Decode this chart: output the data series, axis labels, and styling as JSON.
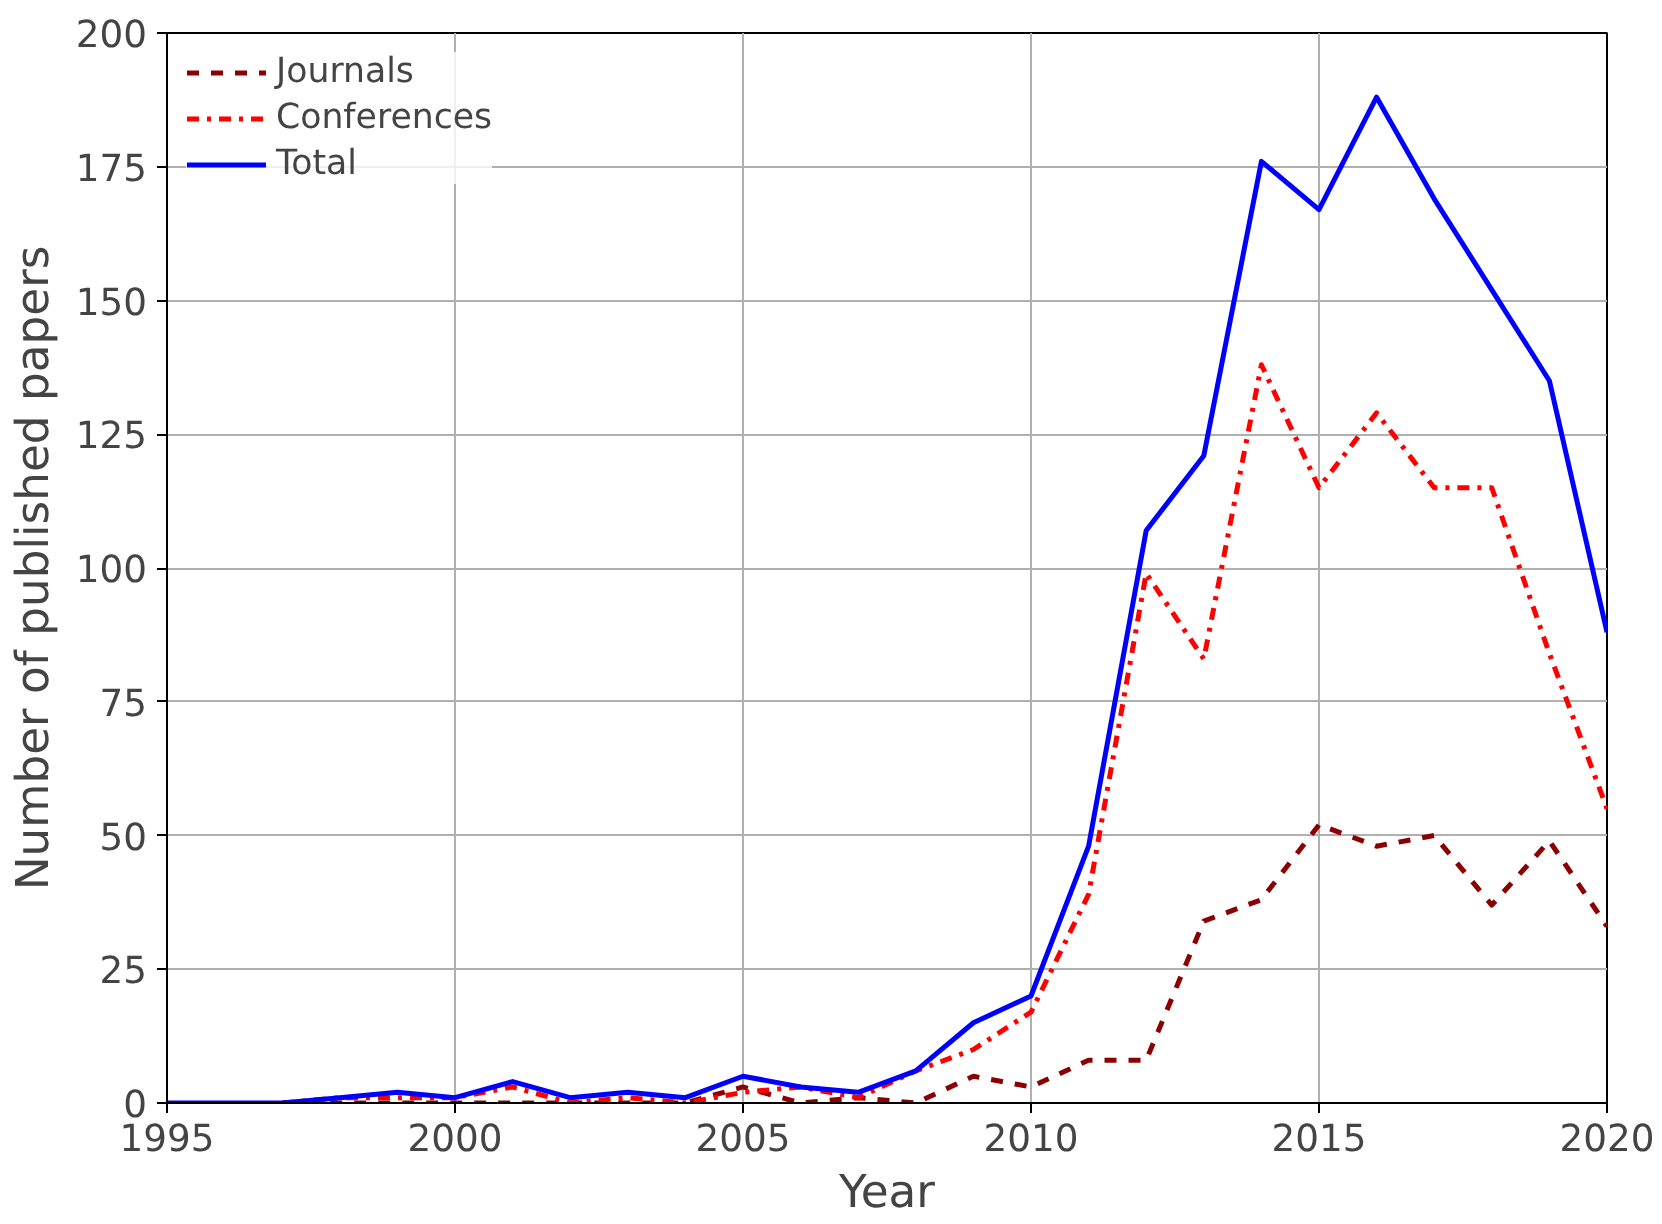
{
  "chart_data": {
    "type": "line",
    "xlabel": "Year",
    "ylabel": "Number of published papers",
    "x": [
      1995,
      1996,
      1997,
      1998,
      1999,
      2000,
      2001,
      2002,
      2003,
      2004,
      2005,
      2006,
      2007,
      2008,
      2009,
      2010,
      2011,
      2012,
      2013,
      2014,
      2015,
      2016,
      2017,
      2018,
      2019,
      2020
    ],
    "series": [
      {
        "name": "Journals",
        "color": "#8b0000",
        "line_style": "dashed",
        "values": [
          null,
          null,
          0,
          0,
          0,
          0,
          0,
          0,
          0,
          0,
          3,
          0,
          1,
          0,
          5,
          3,
          8,
          8,
          34,
          38,
          52,
          48,
          50,
          37,
          49,
          33
        ]
      },
      {
        "name": "Conferences",
        "color": "#ff0000",
        "line_style": "dashdot",
        "values": [
          null,
          null,
          0,
          1,
          1,
          1,
          3,
          0,
          1,
          0,
          2,
          3,
          1,
          6,
          10,
          17,
          39,
          99,
          83,
          138,
          115,
          129,
          115,
          115,
          84,
          55
        ]
      },
      {
        "name": "Total",
        "color": "#0000ff",
        "line_style": "solid",
        "values": [
          0,
          0,
          0,
          1,
          2,
          1,
          4,
          1,
          2,
          1,
          5,
          3,
          2,
          6,
          15,
          20,
          48,
          107,
          121,
          176,
          167,
          188,
          169,
          152,
          135,
          88
        ]
      }
    ],
    "xlim": [
      1995,
      2020
    ],
    "xticks": [
      1995,
      2000,
      2005,
      2010,
      2015,
      2020
    ],
    "ylim": [
      0,
      200
    ],
    "yticks": [
      0,
      25,
      50,
      75,
      100,
      125,
      150,
      175,
      200
    ],
    "grid": true,
    "legend": "top left"
  }
}
